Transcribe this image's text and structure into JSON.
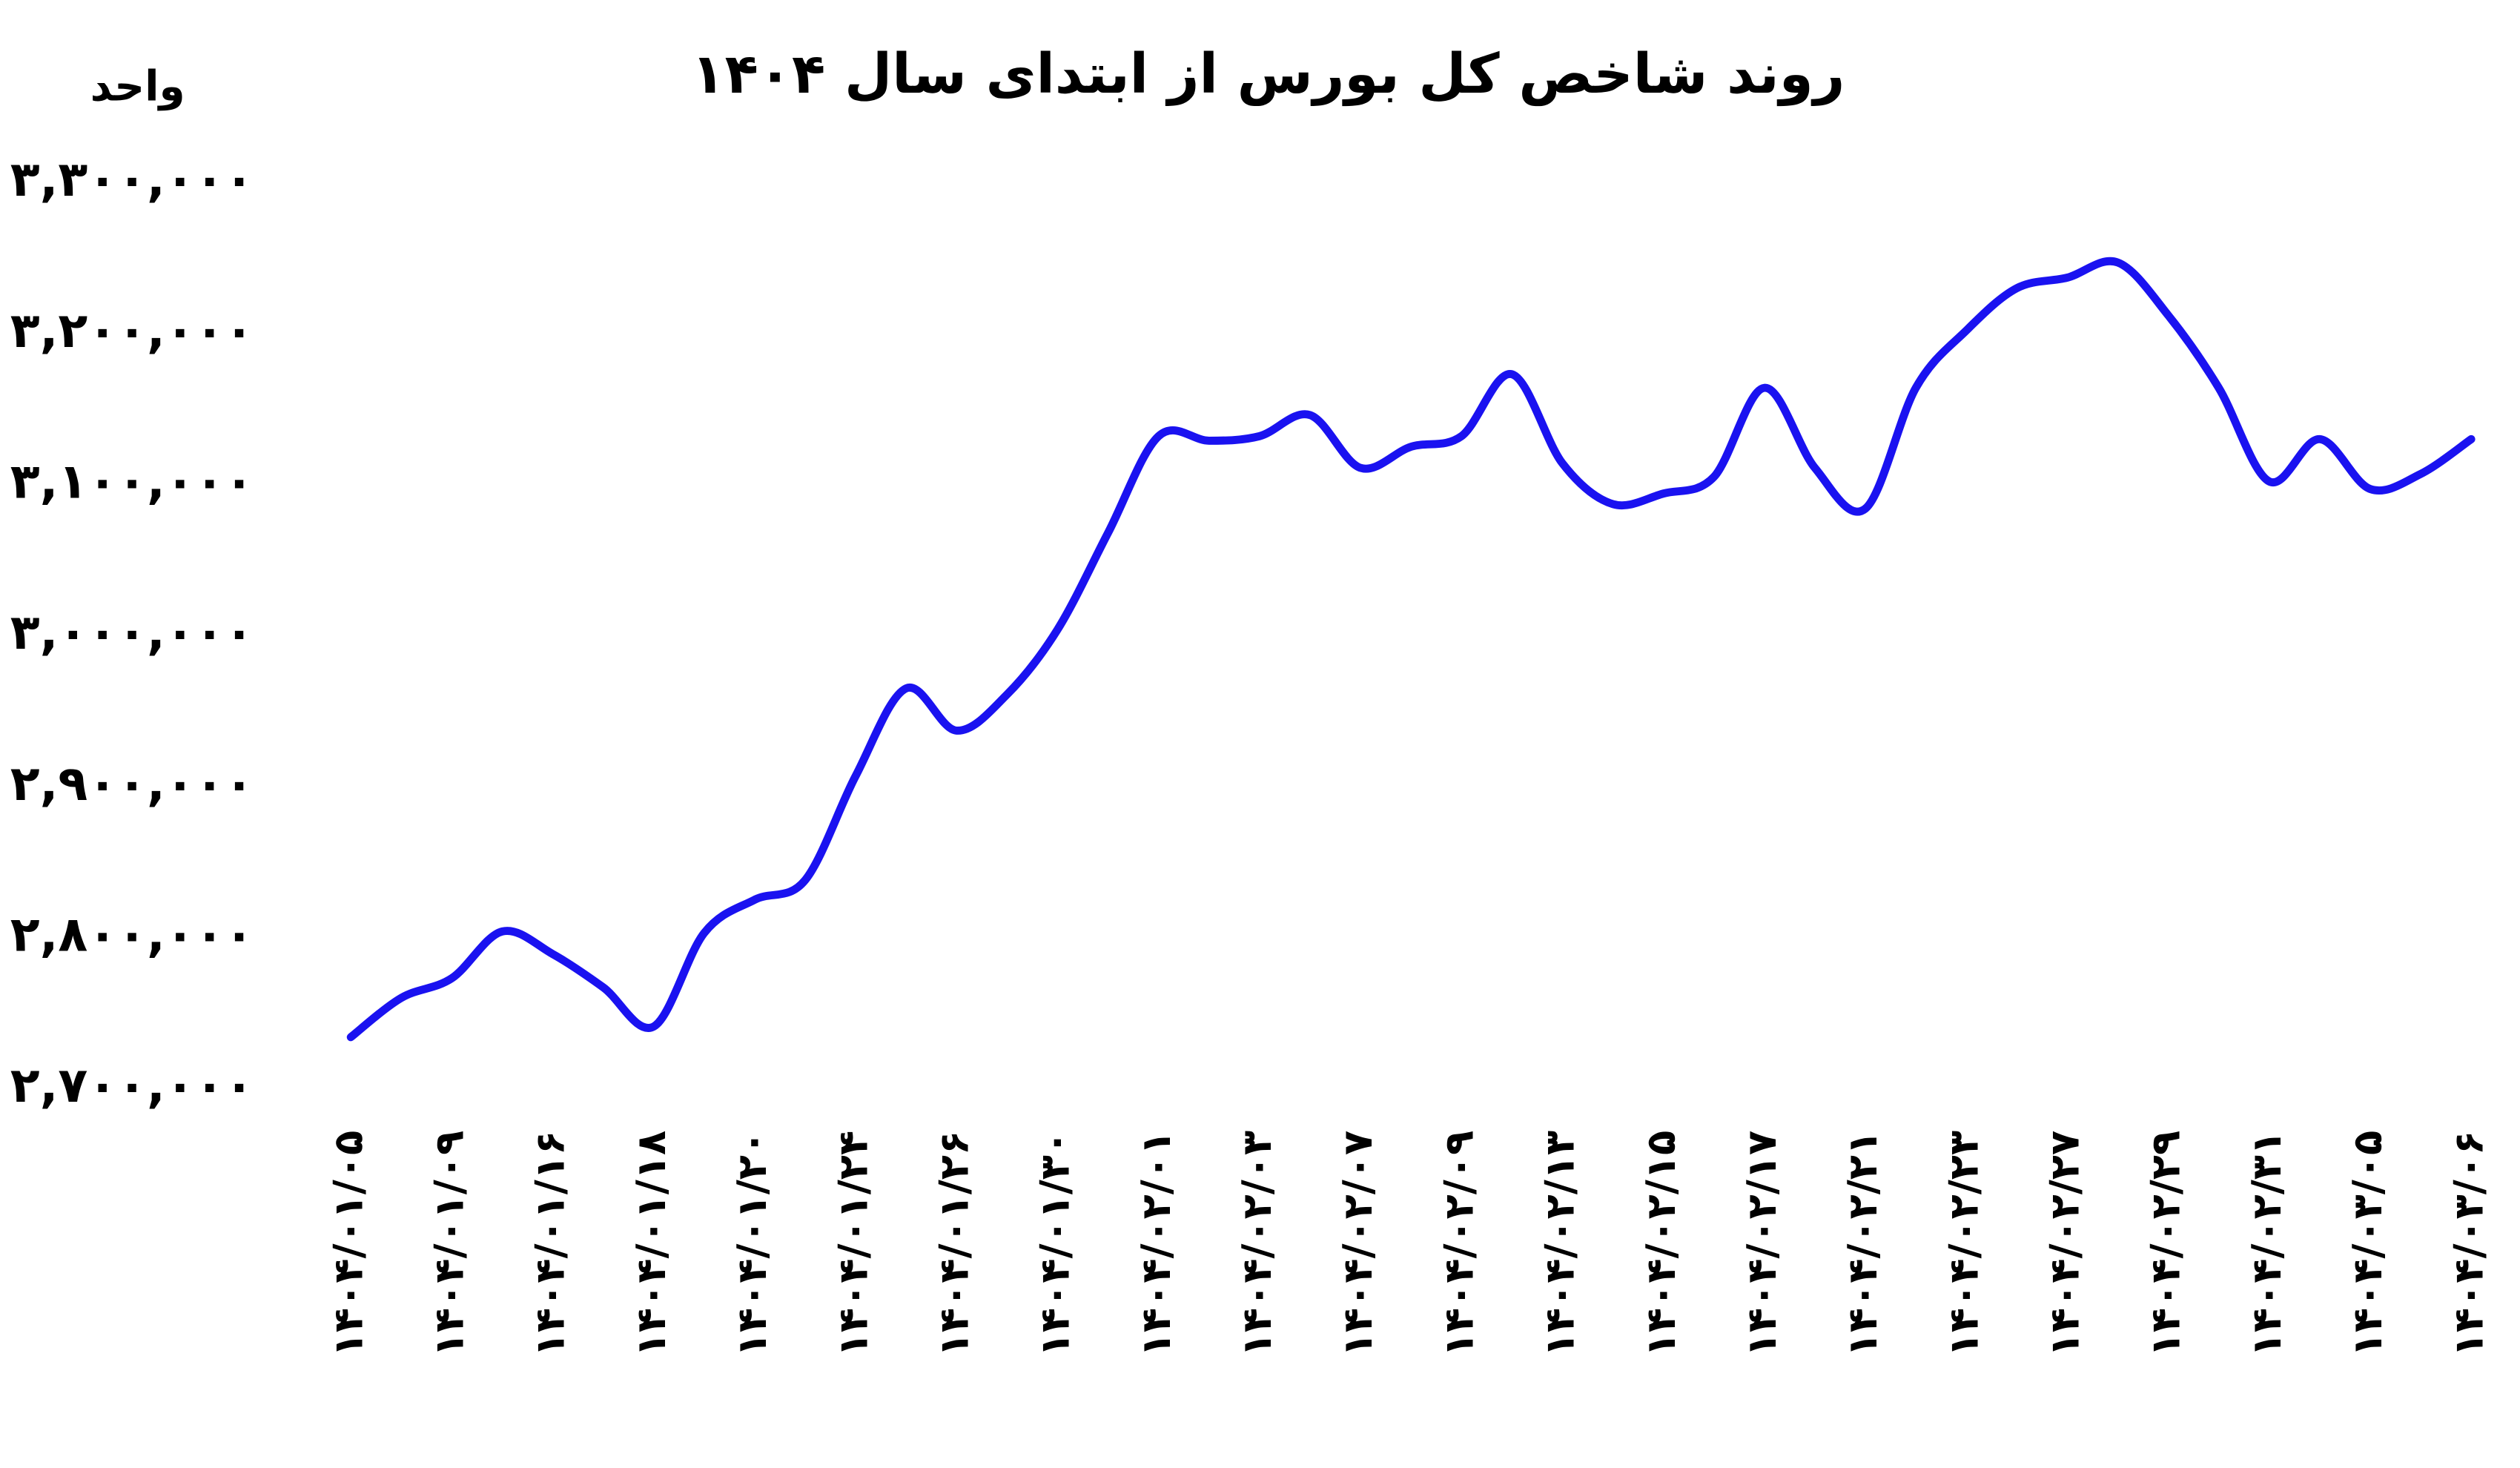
{
  "chart_data": {
    "type": "line",
    "title": "روند شاخص کل بورس از ابتدای سال ۱۴۰۴",
    "y_label": "واحد",
    "categories": [
      "۱۴۰۴/۰۱/۰۵",
      null,
      "۱۴۰۴/۰۱/۰۹",
      null,
      "۱۴۰۴/۰۱/۱۶",
      null,
      "۱۴۰۴/۰۱/۱۸",
      null,
      "۱۴۰۴/۰۱/۲۰",
      null,
      "۱۴۰۴/۰۱/۲۴",
      null,
      "۱۴۰۴/۰۱/۲۶",
      null,
      "۱۴۰۴/۰۱/۳۰",
      null,
      "۱۴۰۴/۰۲/۰۱",
      null,
      "۱۴۰۴/۰۲/۰۳",
      null,
      "۱۴۰۴/۰۲/۰۷",
      null,
      "۱۴۰۴/۰۲/۰۹",
      null,
      "۱۴۰۴/۰۲/۱۳",
      null,
      "۱۴۰۴/۰۲/۱۵",
      null,
      "۱۴۰۴/۰۲/۱۷",
      null,
      "۱۴۰۴/۰۲/۲۱",
      null,
      "۱۴۰۴/۰۲/۲۳",
      null,
      "۱۴۰۴/۰۲/۲۷",
      null,
      "۱۴۰۴/۰۲/۲۹",
      null,
      "۱۴۰۴/۰۲/۳۱",
      null,
      "۱۴۰۴/۰۳/۰۵",
      null,
      "۱۴۰۴/۰۳/۰۶"
    ],
    "values": [
      2734000,
      2760000,
      2773000,
      2804000,
      2789000,
      2767000,
      2741000,
      2803000,
      2825000,
      2838000,
      2907000,
      2965000,
      2937000,
      2961000,
      3004000,
      3068000,
      3132000,
      3129000,
      3132000,
      3146000,
      3111000,
      3125000,
      3132000,
      3173000,
      3114000,
      3087000,
      3094000,
      3105000,
      3164000,
      3111000,
      3084000,
      3164000,
      3202000,
      3230000,
      3237000,
      3247000,
      3212000,
      3164000,
      3102000,
      3130000,
      3097000,
      3107000,
      3130000
    ],
    "color": "#1a12f0",
    "ylim": [
      2700000,
      3300000
    ],
    "yticks": [
      {
        "value": 2700000,
        "label": "۲,۷۰۰,۰۰۰"
      },
      {
        "value": 2800000,
        "label": "۲,۸۰۰,۰۰۰"
      },
      {
        "value": 2900000,
        "label": "۲,۹۰۰,۰۰۰"
      },
      {
        "value": 3000000,
        "label": "۳,۰۰۰,۰۰۰"
      },
      {
        "value": 3100000,
        "label": "۳,۱۰۰,۰۰۰"
      },
      {
        "value": 3200000,
        "label": "۳,۲۰۰,۰۰۰"
      },
      {
        "value": 3300000,
        "label": "۳,۳۰۰,۰۰۰"
      }
    ],
    "grid": false
  }
}
